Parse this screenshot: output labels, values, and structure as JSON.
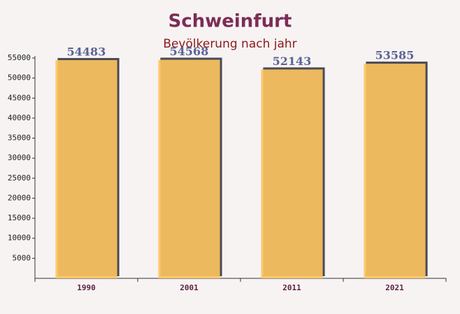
{
  "chart_data": {
    "type": "bar",
    "title": "Schweinfurt",
    "subtitle": "Bevölkerung nach jahr",
    "categories": [
      "1990",
      "2001",
      "2011",
      "2021"
    ],
    "values": [
      54483,
      54568,
      52143,
      53585
    ],
    "color": "#fec55f",
    "ylim": [
      0,
      55000
    ],
    "yticks": [
      5000,
      10000,
      15000,
      20000,
      25000,
      30000,
      35000,
      40000,
      45000,
      50000,
      55000
    ]
  }
}
